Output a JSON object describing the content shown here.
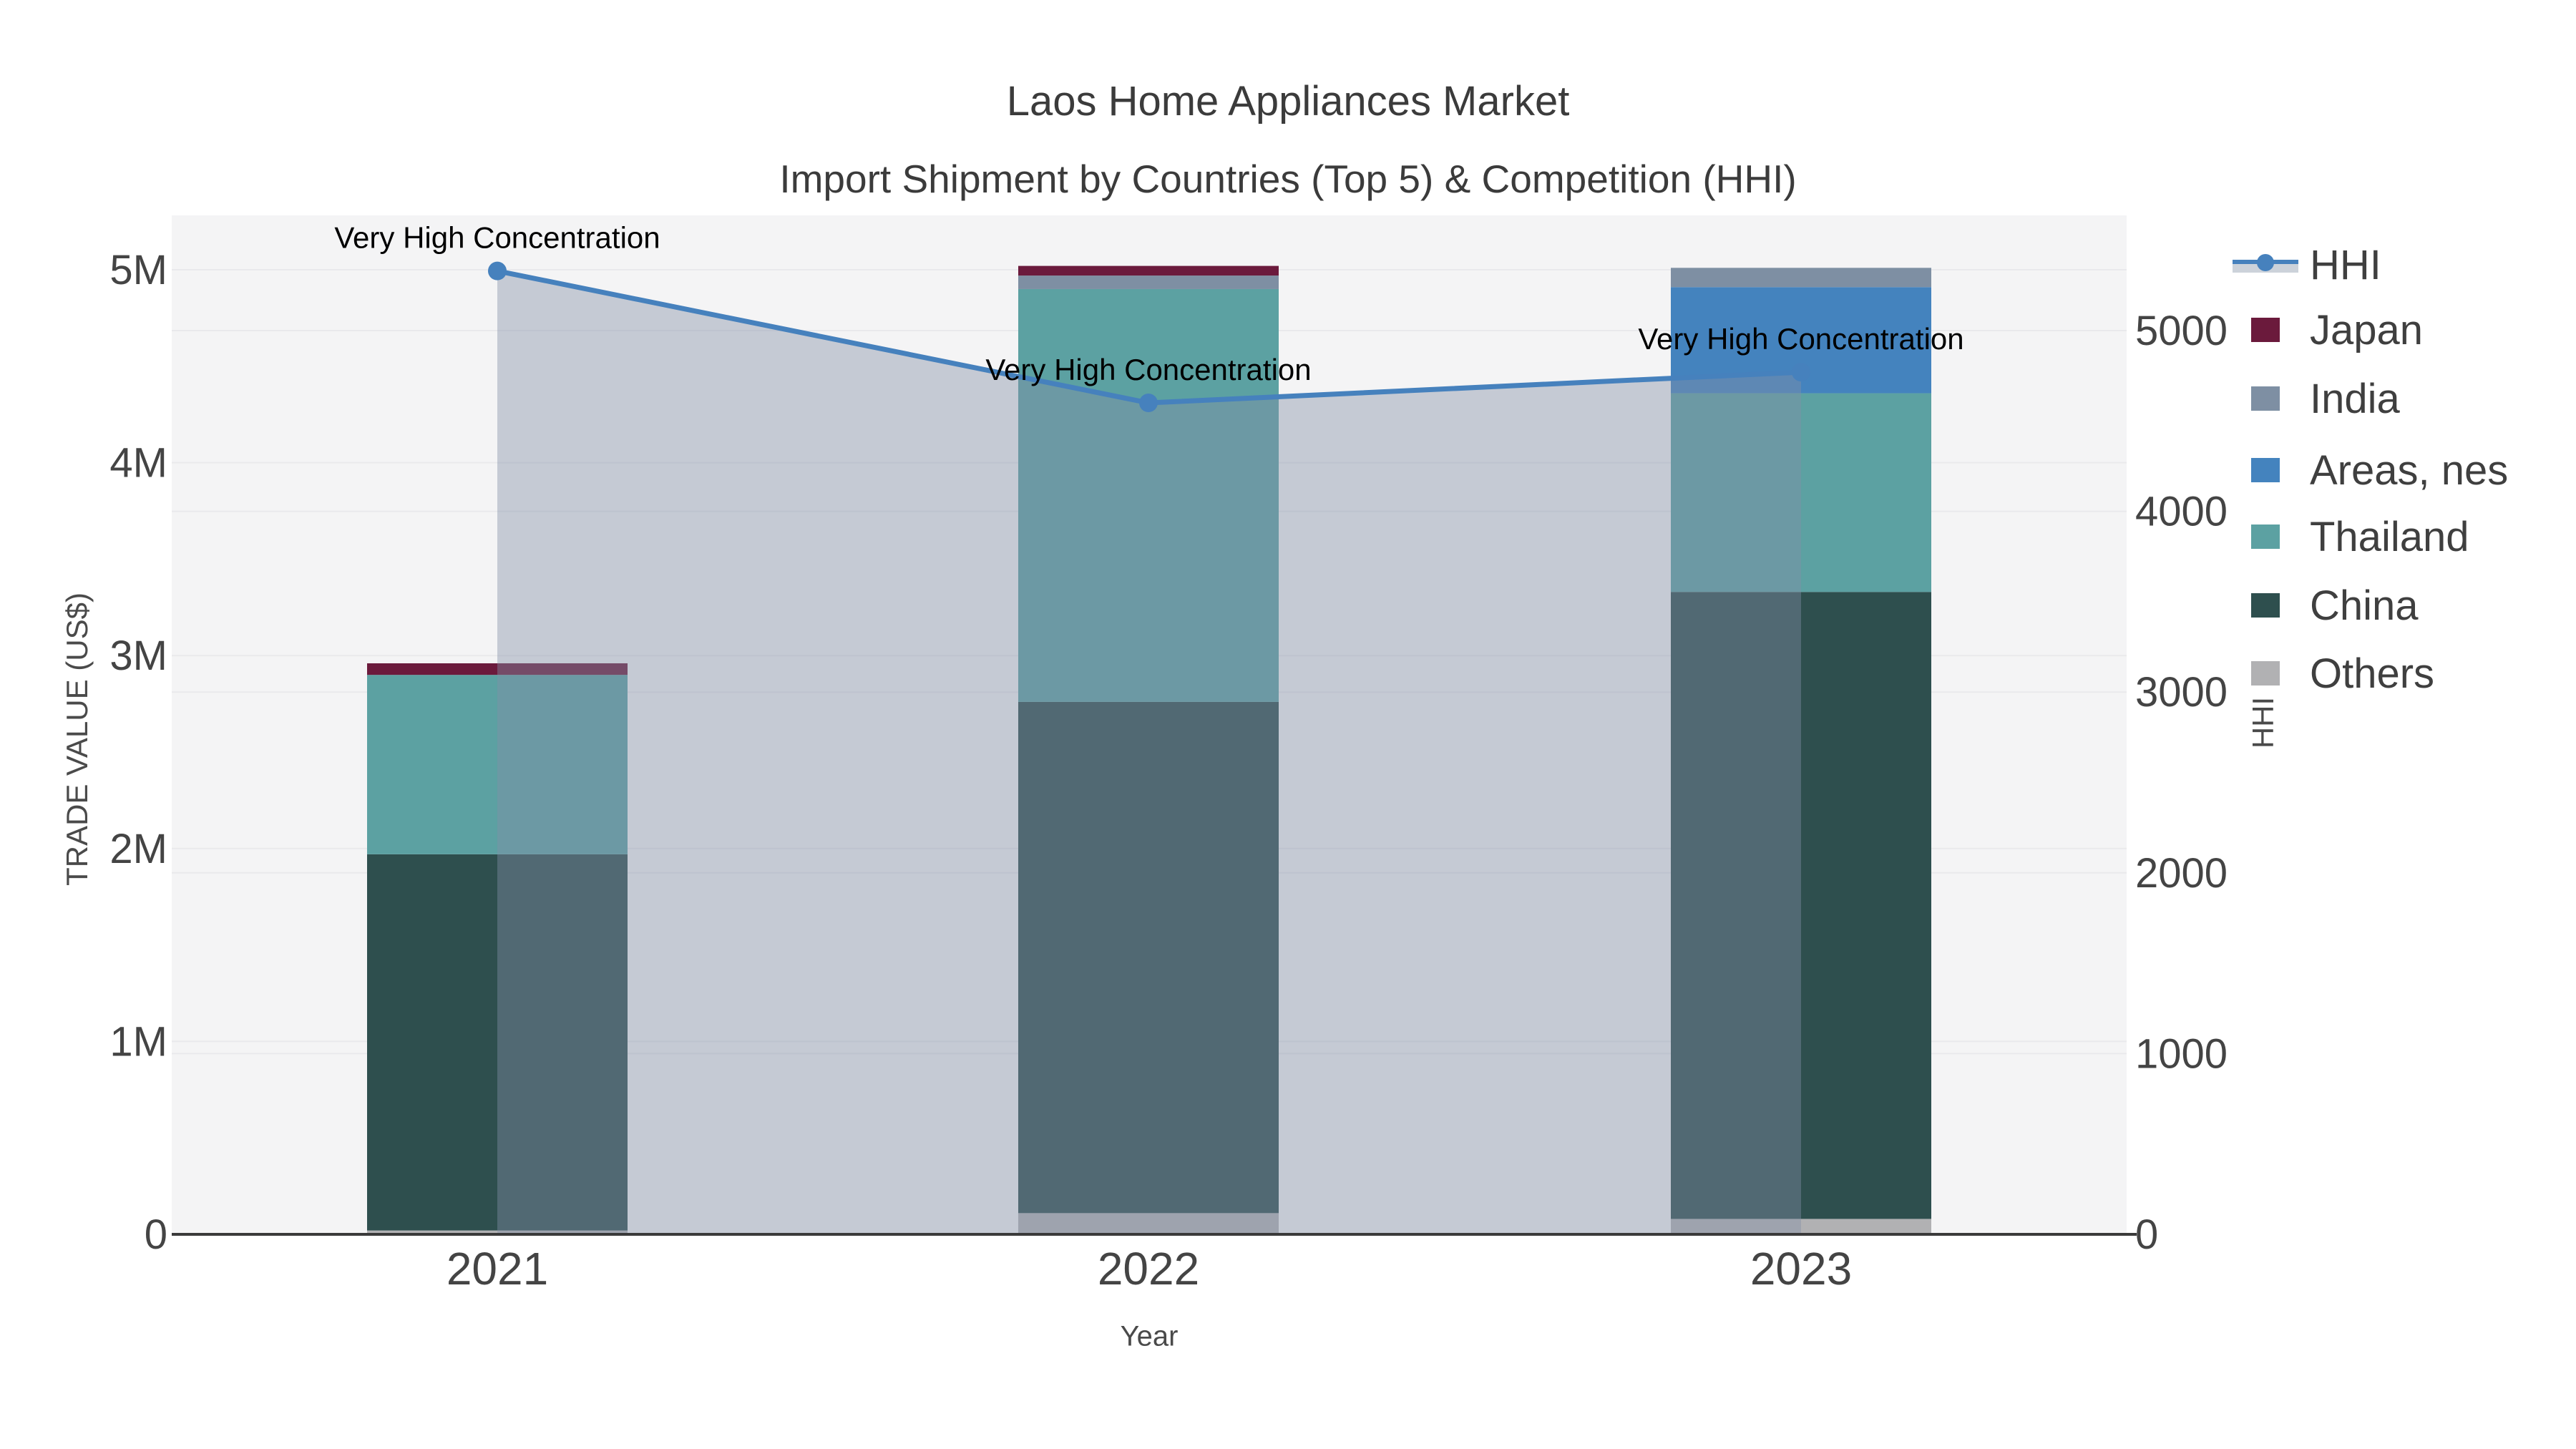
{
  "title": {
    "line1": "Laos Home Appliances Market",
    "line2": "Import Shipment by Countries (Top 5) & Competition (HHI)"
  },
  "axes": {
    "left": {
      "title": "TRADE VALUE (US$)",
      "ticks": [
        "0",
        "1M",
        "2M",
        "3M",
        "4M",
        "5M"
      ],
      "tick_values": [
        0,
        1,
        2,
        3,
        4,
        5
      ],
      "unit": "millions"
    },
    "right": {
      "title": "HHI",
      "ticks": [
        "0",
        "1000",
        "2000",
        "3000",
        "4000",
        "5000"
      ],
      "tick_values": [
        0,
        1000,
        2000,
        3000,
        4000,
        5000
      ]
    },
    "x": {
      "title": "Year",
      "ticks": [
        "2021",
        "2022",
        "2023"
      ]
    }
  },
  "chart_data": {
    "type": "bar+line",
    "categories": [
      "2021",
      "2022",
      "2023"
    ],
    "stack_order_note": "bar_series listed bottom-to-top of stack; values in millions US$",
    "bar_series": [
      {
        "name": "Others",
        "color": "#b1b1b3",
        "values": [
          0.02,
          0.11,
          0.08
        ]
      },
      {
        "name": "China",
        "color": "#2e4f4e",
        "values": [
          1.95,
          2.65,
          3.25
        ]
      },
      {
        "name": "Thailand",
        "color": "#5ca1a2",
        "values": [
          0.93,
          2.14,
          1.03
        ]
      },
      {
        "name": "Areas, nes",
        "color": "#4483be",
        "values": [
          0.0,
          0.0,
          0.55
        ]
      },
      {
        "name": "India",
        "color": "#7e8fa3",
        "values": [
          0.0,
          0.07,
          0.1
        ]
      },
      {
        "name": "Japan",
        "color": "#6b1a3c",
        "values": [
          0.06,
          0.05,
          0.0
        ]
      }
    ],
    "line_series": {
      "name": "HHI",
      "color": "#4681bd",
      "fill_color": "rgba(130,142,166,0.42)",
      "axis": "right",
      "values": [
        5330,
        4600,
        4770
      ]
    },
    "annotations": [
      {
        "text": "Very High Concentration",
        "category": "2021"
      },
      {
        "text": "Very High Concentration",
        "category": "2022"
      },
      {
        "text": "Very High Concentration",
        "category": "2023"
      }
    ],
    "ylim_left_millions": [
      0,
      5.28
    ],
    "ylim_right": [
      0,
      5640
    ],
    "grid": true,
    "legend_position": "right"
  },
  "legend": {
    "items": [
      {
        "label": "HHI",
        "type": "line",
        "color": "#4681bd",
        "band": "#ccd2da"
      },
      {
        "label": "Japan",
        "type": "swatch",
        "color": "#6b1a3c"
      },
      {
        "label": "India",
        "type": "swatch",
        "color": "#7e8fa3"
      },
      {
        "label": "Areas, nes",
        "type": "swatch",
        "color": "#4483be"
      },
      {
        "label": "Thailand",
        "type": "swatch",
        "color": "#5ca1a2"
      },
      {
        "label": "China",
        "type": "swatch",
        "color": "#2e4f4e"
      },
      {
        "label": "Others",
        "type": "swatch",
        "color": "#b1b1b3"
      }
    ]
  },
  "colors": {
    "plot_bg": "#f4f4f5",
    "gridline": "#e9e9ec",
    "axis_line": "#3a3a3a",
    "tick_text": "#444444",
    "annotation_text": "#000000"
  }
}
